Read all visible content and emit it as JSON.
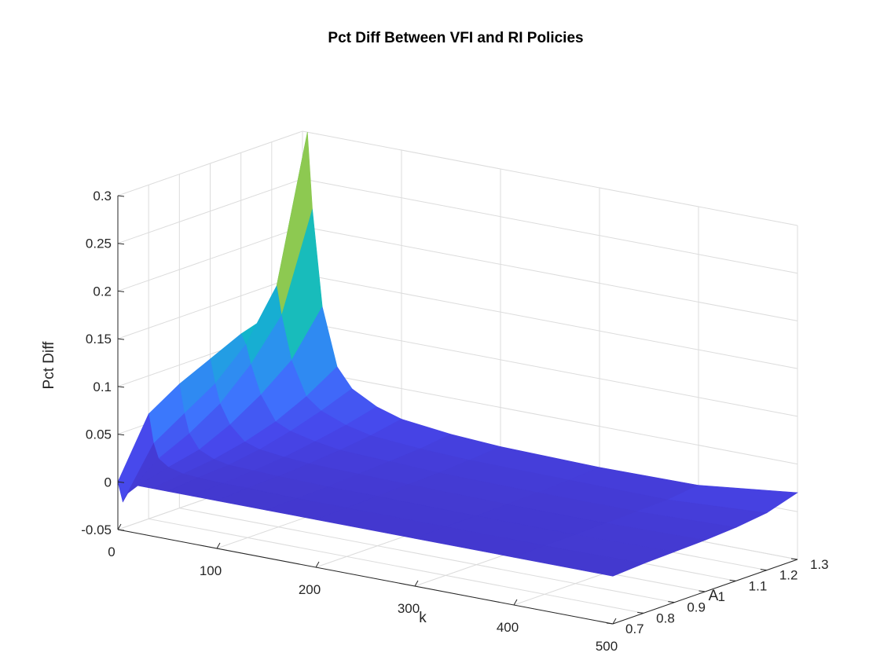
{
  "chart_data": {
    "type": "surface",
    "title": "Pct Diff Between VFI and RI Policies",
    "xlabel": "k",
    "ylabel": "A",
    "zlabel": "Pct Diff",
    "xlim": [
      0,
      500
    ],
    "ylim": [
      0.7,
      1.3
    ],
    "zlim": [
      -0.05,
      0.3
    ],
    "x_ticks": [
      0,
      100,
      200,
      300,
      400,
      500
    ],
    "x_tick_labels": [
      "0",
      "100",
      "200",
      "300",
      "400",
      "500"
    ],
    "y_ticks": [
      0.7,
      0.8,
      0.9,
      1.0,
      1.1,
      1.2,
      1.3
    ],
    "y_tick_labels": [
      "0.7",
      "0.8",
      "0.9",
      "1",
      "1.1",
      "1.2",
      "1.3"
    ],
    "z_ticks": [
      -0.05,
      0,
      0.05,
      0.1,
      0.15,
      0.2,
      0.25,
      0.3
    ],
    "z_tick_labels": [
      "-0.05",
      "0",
      "0.05",
      "0.1",
      "0.15",
      "0.2",
      "0.25",
      "0.3"
    ],
    "grid": true,
    "colormap": [
      "#3e26a8",
      "#4746eb",
      "#3e74fe",
      "#2797eb",
      "#11b7c9",
      "#27c79e",
      "#84cb54",
      "#d3be3a",
      "#fcbe3d",
      "#f8fa0d"
    ],
    "k_samples": [
      0,
      5,
      10,
      20,
      35,
      50,
      75,
      100,
      150,
      200,
      300,
      400,
      500
    ],
    "A_samples": [
      0.7,
      0.8,
      0.9,
      1.0,
      1.1,
      1.2,
      1.3
    ],
    "z_values": [
      [
        0.0,
        0.06,
        0.08,
        0.095,
        0.11,
        0.12,
        0.14
      ],
      [
        -0.02,
        0.03,
        0.05,
        0.07,
        0.1,
        0.15,
        0.3
      ],
      [
        -0.01,
        0.015,
        0.03,
        0.05,
        0.08,
        0.12,
        0.22
      ],
      [
        0.0,
        0.008,
        0.015,
        0.03,
        0.05,
        0.075,
        0.12
      ],
      [
        0.0,
        0.004,
        0.008,
        0.015,
        0.025,
        0.04,
        0.06
      ],
      [
        0.0,
        0.003,
        0.005,
        0.01,
        0.018,
        0.028,
        0.04
      ],
      [
        0.0,
        0.002,
        0.004,
        0.007,
        0.012,
        0.018,
        0.026
      ],
      [
        0.0,
        0.002,
        0.003,
        0.005,
        0.008,
        0.012,
        0.018
      ],
      [
        0.0,
        0.001,
        0.002,
        0.004,
        0.006,
        0.008,
        0.012
      ],
      [
        0.0,
        0.001,
        0.002,
        0.003,
        0.004,
        0.006,
        0.009
      ],
      [
        0.0,
        0.001,
        0.001,
        0.002,
        0.003,
        0.005,
        0.007
      ],
      [
        0.0,
        0.001,
        0.001,
        0.002,
        0.003,
        0.004,
        0.008
      ],
      [
        0.0,
        0.002,
        0.003,
        0.004,
        0.006,
        0.01,
        0.02
      ]
    ]
  }
}
